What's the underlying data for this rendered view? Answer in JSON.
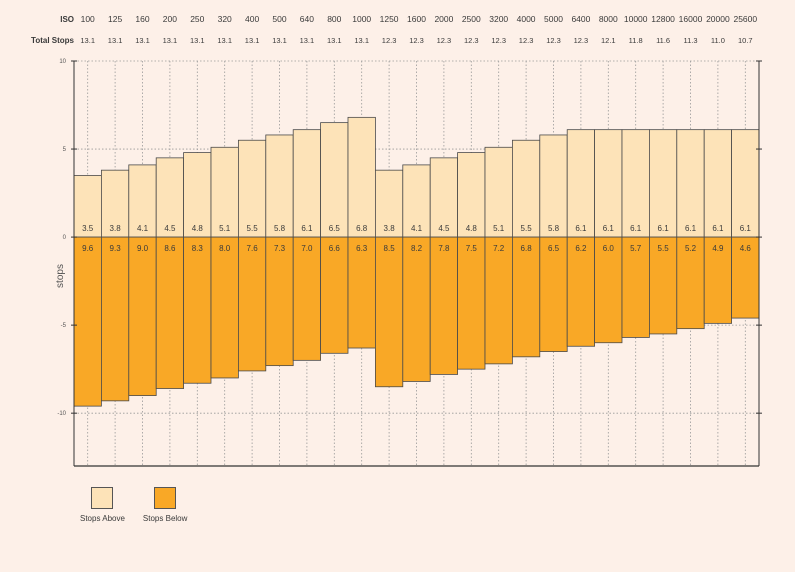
{
  "header": {
    "iso_label": "ISO",
    "stops_label": "Total Stops"
  },
  "legend": {
    "above_label": "Stops Above",
    "below_label": "Stops Below"
  },
  "colors": {
    "above": "#fde3b8",
    "below": "#f9a826",
    "stroke": "#4a4a4a",
    "background": "#fdf0e8"
  },
  "chart_data": {
    "type": "bar",
    "subtype": "stacked-diverging",
    "categories": [
      "100",
      "125",
      "160",
      "200",
      "250",
      "320",
      "400",
      "500",
      "640",
      "800",
      "1000",
      "1250",
      "1600",
      "2000",
      "2500",
      "3200",
      "4000",
      "5000",
      "6400",
      "8000",
      "10000",
      "12800",
      "16000",
      "20000",
      "25600"
    ],
    "total_stops": [
      "13.1",
      "13.1",
      "13.1",
      "13.1",
      "13.1",
      "13.1",
      "13.1",
      "13.1",
      "13.1",
      "13.1",
      "13.1",
      "12.3",
      "12.3",
      "12.3",
      "12.3",
      "12.3",
      "12.3",
      "12.3",
      "12.3",
      "12.1",
      "11.8",
      "11.6",
      "11.3",
      "11.0",
      "10.7"
    ],
    "series": [
      {
        "name": "Stops Above",
        "values": [
          3.5,
          3.8,
          4.1,
          4.5,
          4.8,
          5.1,
          5.5,
          5.8,
          6.1,
          6.5,
          6.8,
          3.8,
          4.1,
          4.5,
          4.8,
          5.1,
          5.5,
          5.8,
          6.1,
          6.1,
          6.1,
          6.1,
          6.1,
          6.1,
          6.1
        ]
      },
      {
        "name": "Stops Below",
        "values": [
          9.6,
          9.3,
          9.0,
          8.6,
          8.3,
          8.0,
          7.6,
          7.3,
          7.0,
          6.6,
          6.3,
          8.5,
          8.2,
          7.8,
          7.5,
          7.2,
          6.8,
          6.5,
          6.2,
          6.0,
          5.7,
          5.5,
          5.2,
          4.9,
          4.6
        ]
      }
    ],
    "ylabel": "stops",
    "ylim": [
      -13,
      10
    ],
    "yticks": [
      "10",
      "5",
      "0",
      "-5",
      "-10"
    ],
    "grid": true,
    "legend_position": "bottom-left"
  }
}
